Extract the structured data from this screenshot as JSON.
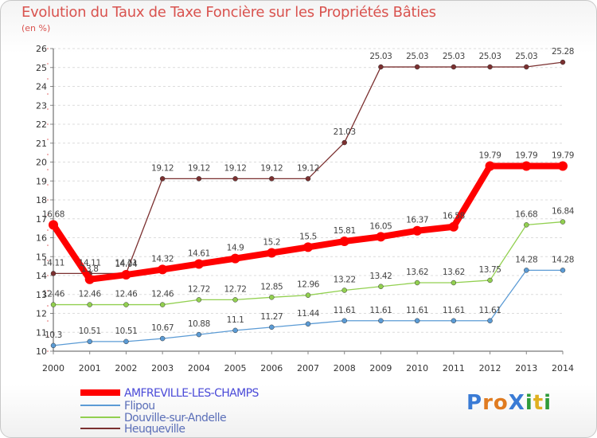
{
  "chart_data": {
    "type": "line",
    "title": "Evolution du Taux de Taxe Foncière sur les Propriétés Bâties",
    "subtitle": "(en %)",
    "x": [
      "2000",
      "2001",
      "2002",
      "2003",
      "2004",
      "2005",
      "2006",
      "2007",
      "2008",
      "2009",
      "2010",
      "2011",
      "2012",
      "2013",
      "2014"
    ],
    "ylim": [
      10,
      26
    ],
    "yticks": [
      "10",
      "11",
      "12",
      "13",
      "14",
      "15",
      "16",
      "17",
      "18",
      "19",
      "20",
      "21",
      "22",
      "23",
      "24",
      "25",
      "26"
    ],
    "series": [
      {
        "name": "AMFREVILLE-LES-CHAMPS",
        "color": "#ff0000",
        "values": [
          16.68,
          13.8,
          14.04,
          14.32,
          14.61,
          14.9,
          15.2,
          15.5,
          15.81,
          16.05,
          16.37,
          16.58,
          19.79,
          19.79,
          19.79
        ],
        "labels": [
          "16.68",
          "13.8",
          "14.04",
          "14.32",
          "14.61",
          "14.9",
          "15.2",
          "15.5",
          "15.81",
          "16.05",
          "16.37",
          "16.58",
          "19.79",
          "19.79",
          "19.79"
        ]
      },
      {
        "name": "Flipou",
        "color": "#5b9bd5",
        "values": [
          10.3,
          10.51,
          10.51,
          10.67,
          10.88,
          11.1,
          11.27,
          11.44,
          11.61,
          11.61,
          11.61,
          11.61,
          11.61,
          14.28,
          14.28
        ],
        "labels": [
          "10.3",
          "10.51",
          "10.51",
          "10.67",
          "10.88",
          "11.1",
          "11.27",
          "11.44",
          "11.61",
          "11.61",
          "11.61",
          "11.61",
          "11.61",
          "14.28",
          "14.28"
        ]
      },
      {
        "name": "Douville-sur-Andelle",
        "color": "#92d050",
        "values": [
          12.46,
          12.46,
          12.46,
          12.46,
          12.72,
          12.72,
          12.85,
          12.96,
          13.22,
          13.42,
          13.62,
          13.62,
          13.75,
          16.68,
          16.84
        ],
        "labels": [
          "12.46",
          "12.46",
          "12.46",
          "12.46",
          "12.72",
          "12.72",
          "12.85",
          "12.96",
          "13.22",
          "13.42",
          "13.62",
          "13.62",
          "13.75",
          "16.68",
          "16.84"
        ]
      },
      {
        "name": "Heuqueville",
        "color": "#7b3030",
        "values": [
          14.11,
          14.11,
          14.11,
          19.12,
          19.12,
          19.12,
          19.12,
          19.12,
          21.03,
          25.03,
          25.03,
          25.03,
          25.03,
          25.03,
          25.28
        ],
        "labels": [
          "14.11",
          "14.11",
          "14.11",
          "19.12",
          "19.12",
          "19.12",
          "19.12",
          "19.12",
          "21.03",
          "25.03",
          "25.03",
          "25.03",
          "25.03",
          "25.03",
          "25.28"
        ]
      }
    ],
    "legend_position": "bottom-left"
  },
  "logo": {
    "text": "ProXiti",
    "letters": [
      "P",
      "r",
      "o",
      "X",
      "i",
      "t",
      "i"
    ]
  }
}
